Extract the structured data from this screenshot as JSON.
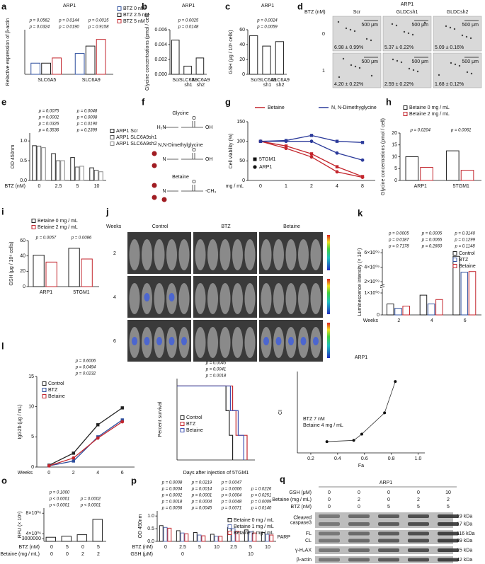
{
  "chart_data": [
    {
      "panel": "a",
      "type": "bar",
      "title": "ARP1",
      "ylabel": "Relactive expression of β-actin",
      "categories": [
        "SLC6A5",
        "SLC6A9"
      ],
      "series": [
        {
          "name": "BTZ 0 nM",
          "color": "#2e4f9e",
          "values": [
            0.15,
            0.28
          ]
        },
        {
          "name": "BTZ 2.5 nM",
          "color": "#222222",
          "values": [
            0.15,
            0.38
          ]
        },
        {
          "name": "BTZ 5 nM",
          "color": "#c3262d",
          "values": [
            0.22,
            0.47
          ]
        }
      ],
      "ylim": [
        0,
        0.6
      ],
      "annotations": [
        "p = 0.0324",
        "p = 0.0190",
        "p = 0.9158",
        "p = 0.0562",
        "p = 0.0144",
        "p = 0.0015"
      ]
    },
    {
      "panel": "b",
      "type": "bar",
      "title": "ARP1",
      "ylabel": "Glycine concentrations (pmol / cell)",
      "categories": [
        "Scr",
        "SLC6A9 sh1",
        "SLC6A9 sh2"
      ],
      "series": [
        {
          "color": "#222222",
          "values": [
            0.0046,
            0.0011,
            0.0022
          ]
        }
      ],
      "ylim": [
        0,
        0.006
      ],
      "yticks": [
        {
          "value": 0,
          "label": "0.000"
        },
        {
          "value": 0.002,
          "label": "0.002"
        },
        {
          "value": 0.004,
          "label": "0.004"
        },
        {
          "value": 0.006,
          "label": "0.006"
        }
      ],
      "annotations": [
        "p = 0.0148",
        "p = 0.0025"
      ]
    },
    {
      "panel": "c",
      "type": "bar",
      "title": "ARP1",
      "ylabel": "GSH (μg / 10⁶ cells)",
      "categories": [
        "Scr",
        "SLC6A9 sh1",
        "SLC6A9 sh2"
      ],
      "series": [
        {
          "color": "#222222",
          "values": [
            52,
            38,
            44
          ]
        }
      ],
      "ylim": [
        0,
        60
      ],
      "yticks": [
        0,
        20,
        40,
        60
      ],
      "annotations": [
        "p = 0.0059",
        "p = 0.0024"
      ]
    },
    {
      "panel": "e",
      "type": "bar",
      "ylabel": "OD 450nm",
      "xlabel": "BTZ (nM)",
      "categories": [
        "0",
        "2.5",
        "5",
        "10"
      ],
      "series": [
        {
          "name": "ARP1 Scr",
          "color": "#222222",
          "values": [
            0.88,
            0.68,
            0.58,
            0.32
          ]
        },
        {
          "name": "ARP1 SLC6A9sh1",
          "color": "#555555",
          "values": [
            0.87,
            0.5,
            0.34,
            0.26
          ]
        },
        {
          "name": "ARP1 SLC6A9sh2",
          "color": "#888888",
          "values": [
            0.83,
            0.5,
            0.36,
            0.22
          ]
        }
      ],
      "ylim": [
        0,
        1.2
      ],
      "yticks": [
        {
          "value": 0,
          "label": "0.0"
        },
        {
          "value": 0.5,
          "label": "0.5"
        },
        {
          "value": 1,
          "label": "1.0"
        }
      ],
      "annotations": [
        "p = 0.3536",
        "p = 0.2399",
        "p = 0.0326",
        "p = 0.0190",
        "p = 0.0002",
        "p = 0.0008",
        "p = 0.0075",
        "p = 0.0048"
      ]
    },
    {
      "panel": "g",
      "type": "line",
      "ylabel": "Cell viability (%)",
      "xlabel": "mg / mL",
      "categories": [
        "0",
        "1",
        "2",
        "4",
        "8"
      ],
      "series": [
        {
          "color": "#c3262d",
          "marker": "square",
          "values": [
            100,
            88,
            68,
            35,
            10
          ]
        },
        {
          "color": "#c3262d",
          "marker": "circle",
          "values": [
            100,
            82,
            60,
            22,
            8
          ]
        },
        {
          "color": "#2b3a9a",
          "marker": "square",
          "values": [
            100,
            102,
            115,
            100,
            97
          ]
        },
        {
          "color": "#2b3a9a",
          "marker": "circle",
          "values": [
            100,
            100,
            100,
            70,
            52
          ]
        }
      ],
      "ylim": [
        0,
        150
      ],
      "yticks": [
        0,
        50,
        100,
        150
      ],
      "legend": [
        {
          "name": "Betaine",
          "color": "#c3262d"
        },
        {
          "name": "N, N-Dimethyglycine",
          "color": "#2b3a9a"
        }
      ],
      "marker_legend": [
        {
          "name": "5TGM1",
          "marker": "square"
        },
        {
          "name": "ARP1",
          "marker": "circle"
        }
      ]
    },
    {
      "panel": "h",
      "type": "bar",
      "ylabel": "Glycine concentrations (pmol / cell)",
      "categories": [
        "ARP1",
        "5TGM1"
      ],
      "series": [
        {
          "name": "Betaine 0 mg / mL",
          "color": "#222222",
          "values": [
            10,
            12.5
          ]
        },
        {
          "name": "Betaine 2 mg / mL",
          "color": "#c3262d",
          "values": [
            5.5,
            4.3
          ]
        }
      ],
      "ylim": [
        0,
        20
      ],
      "yticks": [
        0,
        5,
        10,
        15,
        20
      ],
      "annotations": [
        "p = 0.0204",
        "p = 0.0061"
      ]
    },
    {
      "panel": "i",
      "type": "bar",
      "ylabel": "GSH (μg / 10⁶ cells)",
      "categories": [
        "ARP1",
        "5TGM1"
      ],
      "series": [
        {
          "name": "Betaine 0 mg / mL",
          "color": "#222222",
          "values": [
            41,
            50
          ]
        },
        {
          "name": "Betaine 2 mg / mL",
          "color": "#c3262d",
          "values": [
            32,
            36
          ]
        }
      ],
      "ylim": [
        0,
        60
      ],
      "yticks": [
        0,
        20,
        40,
        60
      ],
      "annotations": [
        "p = 0.0057",
        "p = 0.0086"
      ]
    },
    {
      "panel": "k",
      "type": "bar",
      "ylabel": "Luminescence intensity (× 10⁷)",
      "xlabel": "Weeks",
      "categories": [
        "2",
        "4",
        "6"
      ],
      "series": [
        {
          "name": "Control",
          "color": "#222222",
          "values": [
            50000000,
            90000000,
            5500000000
          ]
        },
        {
          "name": "BTZ",
          "color": "#2e4f9e",
          "values": [
            30000000,
            50000000,
            3300000000
          ]
        },
        {
          "name": "Betaine",
          "color": "#c3262d",
          "values": [
            40000000,
            70000000,
            3400000000
          ]
        }
      ],
      "ylim": [
        0,
        6500000000
      ],
      "ybreak": [
        120000000,
        1500000000
      ],
      "yticks": [
        0,
        {
          "value": 100000000,
          "label": "1×10⁰⁸"
        },
        {
          "value": 2000000000,
          "label": "2×10⁰⁹"
        },
        {
          "value": 4000000000,
          "label": "4×10⁰⁹"
        },
        {
          "value": 6000000000,
          "label": "6×10⁰⁹"
        }
      ],
      "annotations": [
        "p = 0.7178",
        "p = 0.2660",
        "p = 0.1148",
        "p = 0.0187",
        "p = 0.0065",
        "p = 0.1299",
        "p = 0.0005",
        "p = 0.0005",
        "p = 0.3140"
      ]
    },
    {
      "panel": "l",
      "type": "line",
      "ylabel": "IgG2b (μg / mL)",
      "xlabel": "Weeks",
      "categories": [
        "0",
        "2",
        "4",
        "6"
      ],
      "series": [
        {
          "name": "Control",
          "color": "#222222",
          "marker": "square",
          "values": [
            0.3,
            2.3,
            7,
            9.8
          ]
        },
        {
          "name": "BTZ",
          "color": "#2e4f9e",
          "marker": "square",
          "values": [
            0.2,
            1,
            5,
            7.8
          ]
        },
        {
          "name": "Betaine",
          "color": "#c3262d",
          "marker": "circle",
          "values": [
            0.2,
            1.5,
            4.8,
            7.5
          ]
        }
      ],
      "ylim": [
        0,
        15
      ],
      "yticks": [
        0,
        5,
        10,
        15
      ],
      "annotations": [
        "p = 0.0232",
        "p = 0.0494",
        "p = 0.6006"
      ]
    },
    {
      "panel": "m",
      "type": "step",
      "ylabel": "Percent survival",
      "xlabel": "Days after injection of 5TGM1",
      "xlim": [
        0,
        70
      ],
      "ylim": [
        0,
        110
      ],
      "series": [
        {
          "name": "Control",
          "color": "#222222",
          "x": [
            0,
            44,
            47,
            50
          ],
          "values": [
            100,
            66.7,
            33.3,
            0
          ]
        },
        {
          "name": "BTZ",
          "color": "#c3262d",
          "x": [
            0,
            50,
            53,
            63
          ],
          "values": [
            100,
            66.7,
            33.3,
            0
          ]
        },
        {
          "name": "Betaine",
          "color": "#3c4fb0",
          "x": [
            0,
            48,
            55,
            60
          ],
          "values": [
            100,
            66.7,
            33.3,
            0
          ]
        }
      ],
      "annotations": [
        "p = 0.0018",
        "p = 0.0041",
        "p = 0.0045"
      ]
    },
    {
      "panel": "n",
      "type": "scatter",
      "title": "ARP1",
      "ylabel": "CI",
      "xlabel": "Fa",
      "xlim": [
        0.1,
        1.05
      ],
      "ylim": [
        0,
        6.5
      ],
      "xticks": [
        {
          "value": 0.2,
          "label": "0.2"
        },
        {
          "value": 0.4,
          "label": "0.4"
        },
        {
          "value": 0.6,
          "label": "0.6"
        },
        {
          "value": 0.8,
          "label": "0.8"
        },
        {
          "value": 1,
          "label": "1.0"
        }
      ],
      "x": [
        0.32,
        0.52,
        0.58,
        0.75,
        0.83
      ],
      "values": [
        0.9,
        1.0,
        1.5,
        3.2,
        5.7
      ],
      "color": "#111111",
      "annotations": [
        "BTZ 7 nM",
        "Betaine 4 mg / mL"
      ]
    },
    {
      "panel": "o",
      "type": "bar",
      "ylabel": "RFU (× 10⁶)",
      "xlabel": "BTZ (nM)",
      "xlabel2": "Betaine (mg / mL)",
      "categories": [
        "0",
        "5",
        "0",
        "5"
      ],
      "categories2": [
        "0",
        "0",
        "2",
        "2"
      ],
      "series": [
        {
          "color": "#222222",
          "values": [
            3300000,
            3500000,
            3800000,
            6800000
          ]
        }
      ],
      "ylim": [
        2500000,
        9000000
      ],
      "yticks": [
        3000000,
        {
          "value": 4000000,
          "label": "4×10⁰⁶"
        },
        {
          "value": 8000000,
          "label": "8×10⁰⁶"
        }
      ],
      "annotations": [
        "p < 0.0001",
        "p < 0.0001",
        "p < 0.0001",
        "p = 0.0002",
        "p = 0.1000"
      ]
    },
    {
      "panel": "p",
      "type": "bar",
      "ylabel": "OD 450nm",
      "xlabel": "BTZ (nM)",
      "xlabel2": "GSH (μM)",
      "categories": [
        "0",
        "2.5",
        "5",
        "10",
        "2.5",
        "5",
        "10"
      ],
      "categories2": [
        null,
        "0",
        null,
        null,
        null,
        "10",
        null
      ],
      "series": [
        {
          "name": "Betaine 0 mg / mL",
          "color": "#222222",
          "values": [
            0.62,
            0.42,
            0.35,
            0.28,
            0.55,
            0.45,
            0.35
          ]
        },
        {
          "name": "Betaine 1 mg / mL",
          "color": "#5b6fb0",
          "values": [
            0.55,
            0.33,
            0.25,
            0.2,
            0.5,
            0.38,
            0.28
          ]
        },
        {
          "name": "Betaine 2 mg / mL",
          "color": "#c3262d",
          "values": [
            0.52,
            0.3,
            0.22,
            0.2,
            0.4,
            0.33,
            0.25
          ]
        }
      ],
      "ylim": [
        0,
        1.2
      ],
      "yticks": [
        {
          "value": 0,
          "label": "0.0"
        },
        {
          "value": 0.5,
          "label": "0.5"
        },
        {
          "value": 1,
          "label": "1.0"
        }
      ],
      "annotations": [
        "p = 0.0056",
        "p = 0.0045",
        "p = 0.0071",
        "p = 0.0140",
        "p = 0.0018",
        "p = 0.0004",
        "p = 0.0048",
        "p = 0.0009",
        "p = 0.0002",
        "p = 0.0001",
        "p = 0.0004",
        "p = 0.0251",
        "p = 0.0004",
        "p = 0.0014",
        "p = 0.0006",
        "p = 0.0226",
        "p = 0.0008",
        "p = 0.0219",
        "p = 0.0047"
      ]
    }
  ],
  "panel_d": {
    "letter": "d",
    "title": "ARP1",
    "row_axis": "BTZ (nM)",
    "columns": [
      "Scr",
      "GLDCsh1",
      "GLDCsh2"
    ],
    "rows": [
      "0",
      "1"
    ],
    "captions": [
      [
        "6.98 ± 0.99%",
        "5.37 ± 0.22%",
        "5.09 ± 0.16%"
      ],
      [
        "4.20 ± 0.22%",
        "2.59 ± 0.22%",
        "1.68 ± 0.12%"
      ]
    ],
    "scale_bar": "500 μm"
  },
  "panel_f": {
    "letter": "f",
    "molecules": [
      {
        "name": "Glycine",
        "atoms": [
          "H₂N",
          "O",
          "OH"
        ]
      },
      {
        "name": "N,N-Dimethylglycine",
        "atoms": [
          "N",
          "O",
          "OH"
        ]
      },
      {
        "name": "Betaine",
        "atoms": [
          "N",
          "O",
          "-CH₃"
        ]
      }
    ]
  },
  "panel_j": {
    "letter": "j",
    "row_axis": "Weeks",
    "columns": [
      "Control",
      "BTZ",
      "Betaine"
    ],
    "rows": [
      "2",
      "4",
      "6"
    ]
  },
  "panel_q": {
    "letter": "q",
    "title": "ARP1",
    "conditions": [
      {
        "label": "GSH (μM)",
        "values": [
          "0",
          "0",
          "0",
          "0",
          "10"
        ]
      },
      {
        "label": "Betaine (mg / mL)",
        "values": [
          "0",
          "2",
          "0",
          "2",
          "2"
        ]
      },
      {
        "label": "BTZ (nM)",
        "values": [
          "0",
          "0",
          "5",
          "5",
          "5"
        ]
      }
    ],
    "blots": [
      {
        "label": "Cleaved caspase3",
        "sizes": [
          "19 kDa",
          "17 kDa"
        ]
      },
      {
        "label": "PARP",
        "forms": [
          "FL",
          "CL"
        ],
        "sizes": [
          "116 kDa",
          "89 kDa"
        ]
      },
      {
        "label": "γ-H₂AX",
        "sizes": [
          "15 kDa"
        ]
      },
      {
        "label": "β-actin",
        "sizes": [
          "42 kDa"
        ]
      }
    ]
  }
}
